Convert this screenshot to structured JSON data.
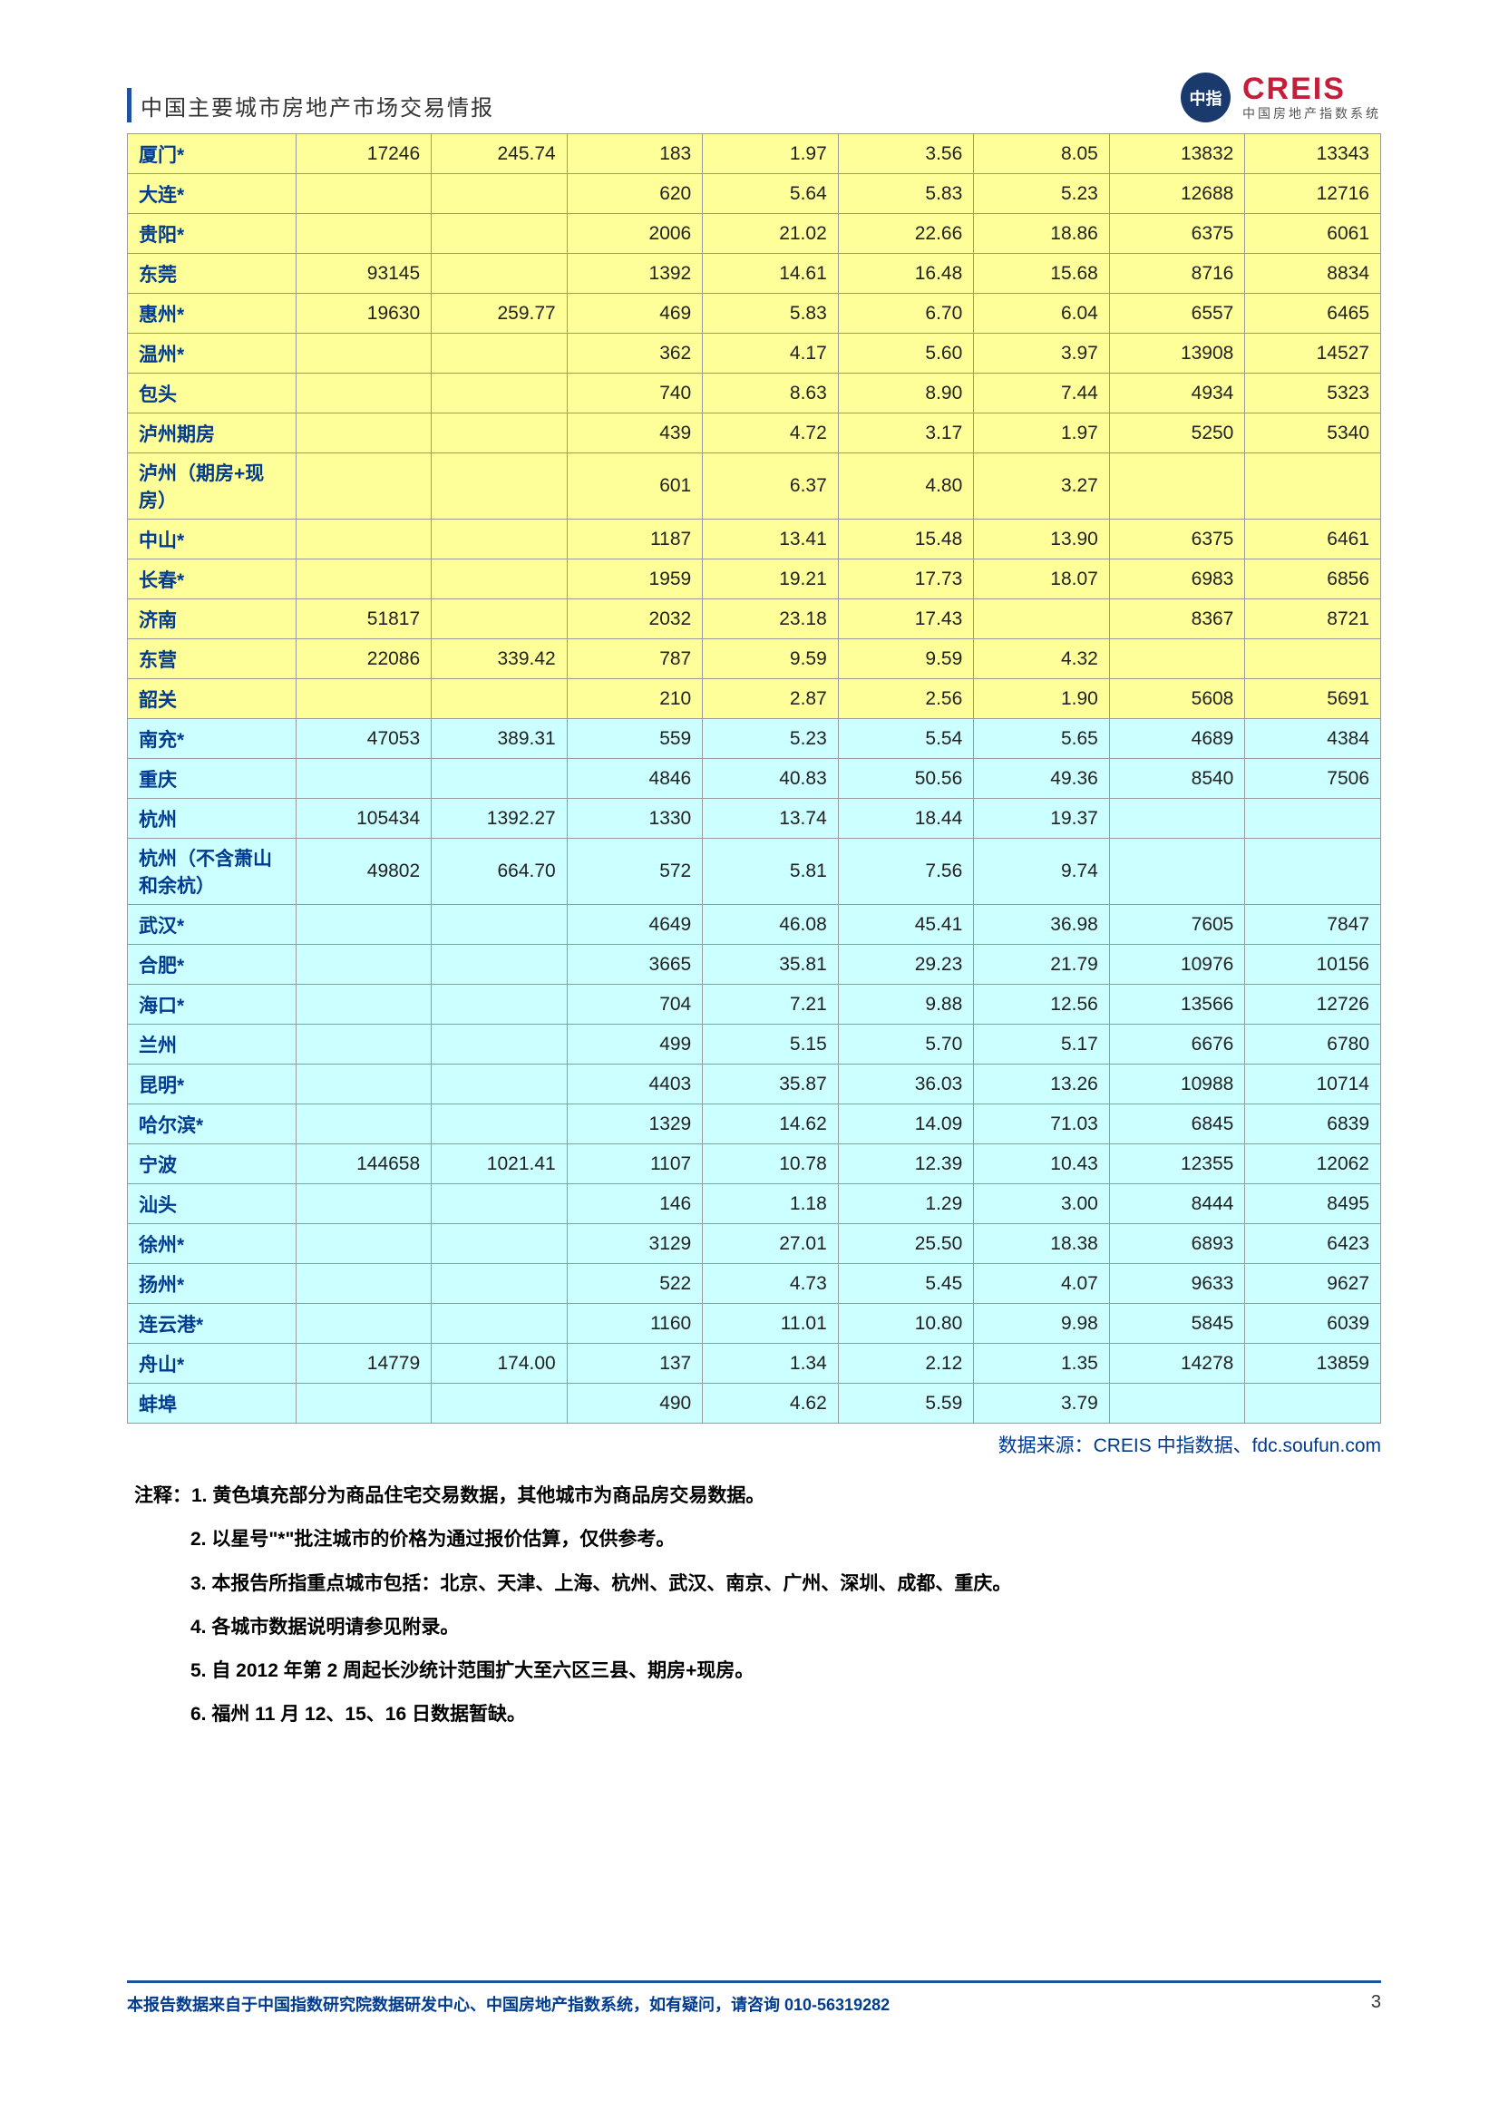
{
  "header": {
    "title": "中国主要城市房地产市场交易情报",
    "logo_main": "CREIS",
    "logo_sub": "中国房地产指数系统",
    "logo_badge": "中指"
  },
  "table": {
    "col_widths": [
      "180px",
      "145px",
      "145px",
      "145px",
      "145px",
      "145px",
      "145px",
      "145px",
      "145px"
    ],
    "rows": [
      {
        "bg": "yellow",
        "cells": [
          "厦门*",
          "17246",
          "245.74",
          "183",
          "1.97",
          "3.56",
          "8.05",
          "13832",
          "13343"
        ]
      },
      {
        "bg": "yellow",
        "cells": [
          "大连*",
          "",
          "",
          "620",
          "5.64",
          "5.83",
          "5.23",
          "12688",
          "12716"
        ]
      },
      {
        "bg": "yellow",
        "cells": [
          "贵阳*",
          "",
          "",
          "2006",
          "21.02",
          "22.66",
          "18.86",
          "6375",
          "6061"
        ]
      },
      {
        "bg": "yellow",
        "cells": [
          "东莞",
          "93145",
          "",
          "1392",
          "14.61",
          "16.48",
          "15.68",
          "8716",
          "8834"
        ]
      },
      {
        "bg": "yellow",
        "cells": [
          "惠州*",
          "19630",
          "259.77",
          "469",
          "5.83",
          "6.70",
          "6.04",
          "6557",
          "6465"
        ]
      },
      {
        "bg": "yellow",
        "cells": [
          "温州*",
          "",
          "",
          "362",
          "4.17",
          "5.60",
          "3.97",
          "13908",
          "14527"
        ]
      },
      {
        "bg": "yellow",
        "cells": [
          "包头",
          "",
          "",
          "740",
          "8.63",
          "8.90",
          "7.44",
          "4934",
          "5323"
        ]
      },
      {
        "bg": "yellow",
        "cells": [
          "泸州期房",
          "",
          "",
          "439",
          "4.72",
          "3.17",
          "1.97",
          "5250",
          "5340"
        ]
      },
      {
        "bg": "yellow",
        "cells": [
          "泸州（期房+现房）",
          "",
          "",
          "601",
          "6.37",
          "4.80",
          "3.27",
          "",
          ""
        ]
      },
      {
        "bg": "yellow",
        "cells": [
          "中山*",
          "",
          "",
          "1187",
          "13.41",
          "15.48",
          "13.90",
          "6375",
          "6461"
        ]
      },
      {
        "bg": "yellow",
        "cells": [
          "长春*",
          "",
          "",
          "1959",
          "19.21",
          "17.73",
          "18.07",
          "6983",
          "6856"
        ]
      },
      {
        "bg": "yellow",
        "cells": [
          "济南",
          "51817",
          "",
          "2032",
          "23.18",
          "17.43",
          "",
          "8367",
          "8721"
        ]
      },
      {
        "bg": "yellow",
        "cells": [
          "东营",
          "22086",
          "339.42",
          "787",
          "9.59",
          "9.59",
          "4.32",
          "",
          ""
        ]
      },
      {
        "bg": "yellow",
        "cells": [
          "韶关",
          "",
          "",
          "210",
          "2.87",
          "2.56",
          "1.90",
          "5608",
          "5691"
        ]
      },
      {
        "bg": "cyan",
        "cells": [
          "南充*",
          "47053",
          "389.31",
          "559",
          "5.23",
          "5.54",
          "5.65",
          "4689",
          "4384"
        ]
      },
      {
        "bg": "cyan",
        "cells": [
          "重庆",
          "",
          "",
          "4846",
          "40.83",
          "50.56",
          "49.36",
          "8540",
          "7506"
        ]
      },
      {
        "bg": "cyan",
        "cells": [
          "杭州",
          "105434",
          "1392.27",
          "1330",
          "13.74",
          "18.44",
          "19.37",
          "",
          ""
        ]
      },
      {
        "bg": "cyan",
        "cells": [
          "杭州（不含萧山和余杭）",
          "49802",
          "664.70",
          "572",
          "5.81",
          "7.56",
          "9.74",
          "",
          ""
        ]
      },
      {
        "bg": "cyan",
        "cells": [
          "武汉*",
          "",
          "",
          "4649",
          "46.08",
          "45.41",
          "36.98",
          "7605",
          "7847"
        ]
      },
      {
        "bg": "cyan",
        "cells": [
          "合肥*",
          "",
          "",
          "3665",
          "35.81",
          "29.23",
          "21.79",
          "10976",
          "10156"
        ]
      },
      {
        "bg": "cyan",
        "cells": [
          "海口*",
          "",
          "",
          "704",
          "7.21",
          "9.88",
          "12.56",
          "13566",
          "12726"
        ]
      },
      {
        "bg": "cyan",
        "cells": [
          "兰州",
          "",
          "",
          "499",
          "5.15",
          "5.70",
          "5.17",
          "6676",
          "6780"
        ]
      },
      {
        "bg": "cyan",
        "cells": [
          "昆明*",
          "",
          "",
          "4403",
          "35.87",
          "36.03",
          "13.26",
          "10988",
          "10714"
        ]
      },
      {
        "bg": "cyan",
        "cells": [
          "哈尔滨*",
          "",
          "",
          "1329",
          "14.62",
          "14.09",
          "71.03",
          "6845",
          "6839"
        ]
      },
      {
        "bg": "cyan",
        "cells": [
          "宁波",
          "144658",
          "1021.41",
          "1107",
          "10.78",
          "12.39",
          "10.43",
          "12355",
          "12062"
        ]
      },
      {
        "bg": "cyan",
        "cells": [
          "汕头",
          "",
          "",
          "146",
          "1.18",
          "1.29",
          "3.00",
          "8444",
          "8495"
        ]
      },
      {
        "bg": "cyan",
        "cells": [
          "徐州*",
          "",
          "",
          "3129",
          "27.01",
          "25.50",
          "18.38",
          "6893",
          "6423"
        ]
      },
      {
        "bg": "cyan",
        "cells": [
          "扬州*",
          "",
          "",
          "522",
          "4.73",
          "5.45",
          "4.07",
          "9633",
          "9627"
        ]
      },
      {
        "bg": "cyan",
        "cells": [
          "连云港*",
          "",
          "",
          "1160",
          "11.01",
          "10.80",
          "9.98",
          "5845",
          "6039"
        ]
      },
      {
        "bg": "cyan",
        "cells": [
          "舟山*",
          "14779",
          "174.00",
          "137",
          "1.34",
          "2.12",
          "1.35",
          "14278",
          "13859"
        ]
      },
      {
        "bg": "cyan",
        "cells": [
          "蚌埠",
          "",
          "",
          "490",
          "4.62",
          "5.59",
          "3.79",
          "",
          ""
        ]
      }
    ]
  },
  "data_source": "数据来源：CREIS 中指数据、fdc.soufun.com",
  "notes_label": "注释：",
  "notes": [
    "1. 黄色填充部分为商品住宅交易数据，其他城市为商品房交易数据。",
    "2. 以星号\"*\"批注城市的价格为通过报价估算，仅供参考。",
    "3. 本报告所指重点城市包括：北京、天津、上海、杭州、武汉、南京、广州、深圳、成都、重庆。",
    "4. 各城市数据说明请参见附录。",
    "5. 自 2012 年第 2 周起长沙统计范围扩大至六区三县、期房+现房。",
    "6. 福州 11 月 12、15、16 日数据暂缺。"
  ],
  "footer": {
    "text": "本报告数据来自于中国指数研究院数据研发中心、中国房地产指数系统，如有疑问，请咨询 010-56319282",
    "page": "3"
  }
}
